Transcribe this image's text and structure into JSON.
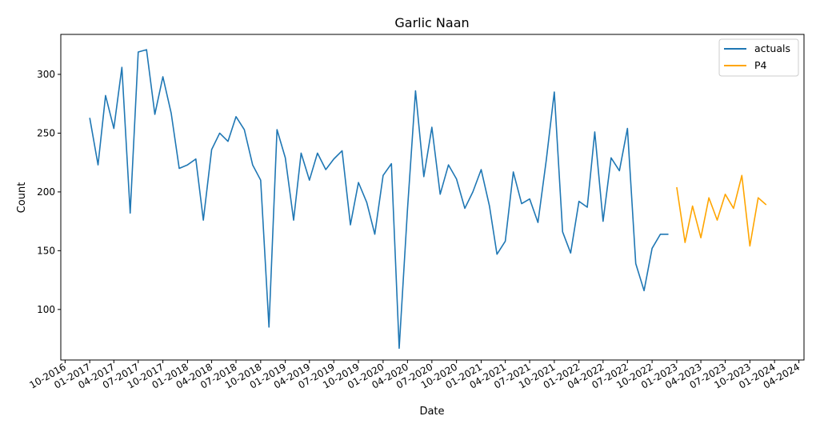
{
  "chart_data": {
    "type": "line",
    "title": "Garlic Naan",
    "xlabel": "Date",
    "ylabel": "Count",
    "x_axis_type": "date",
    "xlim": [
      "2016-09-15",
      "2024-04-20"
    ],
    "ylim": [
      57,
      334
    ],
    "x_ticks": [
      "2016-10-01",
      "2017-01-01",
      "2017-04-01",
      "2017-07-01",
      "2017-10-01",
      "2018-01-01",
      "2018-04-01",
      "2018-07-01",
      "2018-10-01",
      "2019-01-01",
      "2019-04-01",
      "2019-07-01",
      "2019-10-01",
      "2020-01-01",
      "2020-04-01",
      "2020-07-01",
      "2020-10-01",
      "2021-01-01",
      "2021-04-01",
      "2021-07-01",
      "2021-10-01",
      "2022-01-01",
      "2022-04-01",
      "2022-07-01",
      "2022-10-01",
      "2023-01-01",
      "2023-04-01",
      "2023-07-01",
      "2023-10-01",
      "2024-01-01",
      "2024-04-01"
    ],
    "x_tick_labels": [
      "10-2016",
      "01-2017",
      "04-2017",
      "07-2017",
      "10-2017",
      "01-2018",
      "04-2018",
      "07-2018",
      "10-2018",
      "01-2019",
      "04-2019",
      "07-2019",
      "10-2019",
      "01-2020",
      "04-2020",
      "07-2020",
      "10-2020",
      "01-2021",
      "04-2021",
      "07-2021",
      "10-2021",
      "01-2022",
      "04-2022",
      "07-2022",
      "10-2022",
      "01-2023",
      "04-2023",
      "07-2023",
      "10-2023",
      "01-2024",
      "04-2024"
    ],
    "y_ticks": [
      100,
      150,
      200,
      250,
      300
    ],
    "y_tick_labels": [
      "100",
      "150",
      "200",
      "250",
      "300"
    ],
    "grid": false,
    "legend_position": "top-right",
    "legend": [
      "actuals",
      "P4"
    ],
    "series": [
      {
        "name": "actuals",
        "color": "#1f77b4",
        "x": [
          "2017-01-01",
          "2017-02-01",
          "2017-03-01",
          "2017-04-01",
          "2017-05-01",
          "2017-06-01",
          "2017-07-01",
          "2017-08-01",
          "2017-09-01",
          "2017-10-01",
          "2017-11-01",
          "2017-12-01",
          "2018-01-01",
          "2018-02-01",
          "2018-03-01",
          "2018-04-01",
          "2018-05-01",
          "2018-06-01",
          "2018-07-01",
          "2018-08-01",
          "2018-09-01",
          "2018-10-01",
          "2018-11-01",
          "2018-12-01",
          "2019-01-01",
          "2019-02-01",
          "2019-03-01",
          "2019-04-01",
          "2019-05-01",
          "2019-06-01",
          "2019-07-01",
          "2019-08-01",
          "2019-09-01",
          "2019-10-01",
          "2019-11-01",
          "2019-12-01",
          "2020-01-01",
          "2020-02-01",
          "2020-03-01",
          "2020-04-01",
          "2020-05-01",
          "2020-06-01",
          "2020-07-01",
          "2020-08-01",
          "2020-09-01",
          "2020-10-01",
          "2020-11-01",
          "2020-12-01",
          "2021-01-01",
          "2021-02-01",
          "2021-03-01",
          "2021-04-01",
          "2021-05-01",
          "2021-06-01",
          "2021-07-01",
          "2021-08-01",
          "2021-09-01",
          "2021-10-01",
          "2021-11-01",
          "2021-12-01",
          "2022-01-01",
          "2022-02-01",
          "2022-03-01",
          "2022-04-01",
          "2022-05-01",
          "2022-06-01",
          "2022-07-01",
          "2022-08-01",
          "2022-09-01",
          "2022-10-01",
          "2022-11-01",
          "2022-12-01"
        ],
        "values": [
          263,
          223,
          282,
          254,
          306,
          182,
          319,
          321,
          266,
          298,
          267,
          220,
          223,
          228,
          176,
          236,
          250,
          243,
          264,
          253,
          223,
          210,
          85,
          253,
          229,
          176,
          233,
          210,
          233,
          219,
          228,
          235,
          172,
          208,
          191,
          164,
          214,
          224,
          67,
          185,
          286,
          213,
          255,
          198,
          223,
          211,
          186,
          200,
          219,
          188,
          147,
          158,
          217,
          190,
          194,
          174,
          227,
          285,
          166,
          148,
          192,
          187,
          251,
          175,
          229,
          218,
          254,
          139,
          116,
          152,
          164,
          164
        ]
      },
      {
        "name": "P4",
        "color": "#ffa500",
        "x": [
          "2023-01-01",
          "2023-02-01",
          "2023-03-01",
          "2023-04-01",
          "2023-05-01",
          "2023-06-01",
          "2023-07-01",
          "2023-08-01",
          "2023-09-01",
          "2023-10-01",
          "2023-11-01",
          "2023-12-01"
        ],
        "values": [
          204,
          157,
          188,
          161,
          195,
          176,
          198,
          186,
          214,
          154,
          195,
          189
        ]
      }
    ]
  }
}
